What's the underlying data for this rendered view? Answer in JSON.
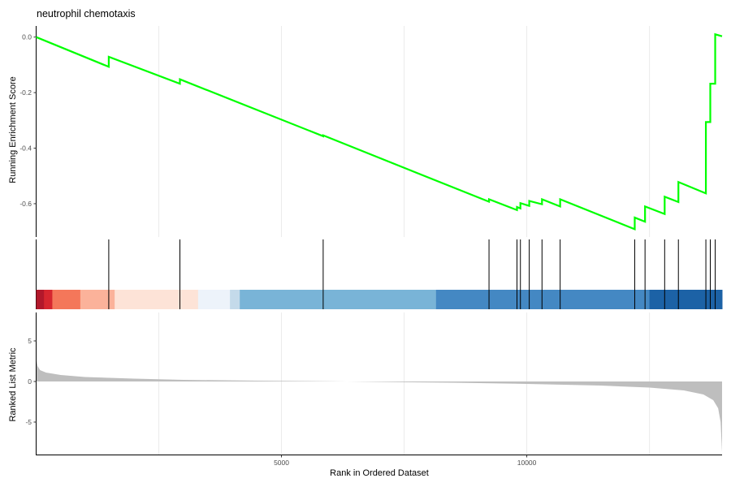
{
  "chart_data": {
    "type": "line",
    "title": "neutrophil chemotaxis",
    "xlabel": "Rank in Ordered Dataset",
    "xlim": [
      0,
      13980
    ],
    "x_ticks": [
      {
        "value": 5000,
        "label": "5000"
      },
      {
        "value": 10000,
        "label": "10000"
      }
    ],
    "running_score": {
      "ylabel": "Running Enrichment Score",
      "ylim": [
        -0.72,
        0.04
      ],
      "y_ticks": [
        {
          "value": 0.0,
          "label": "0.0"
        },
        {
          "value": -0.2,
          "label": "-0.2"
        },
        {
          "value": -0.4,
          "label": "-0.4"
        },
        {
          "value": -0.6,
          "label": "-0.6"
        }
      ],
      "color": "#00ff00",
      "points": [
        [
          0,
          0.0
        ],
        [
          1480,
          -0.107
        ],
        [
          1480,
          -0.071
        ],
        [
          2930,
          -0.168
        ],
        [
          2930,
          -0.152
        ],
        [
          5850,
          -0.357
        ],
        [
          5850,
          -0.354
        ],
        [
          9230,
          -0.593
        ],
        [
          9230,
          -0.584
        ],
        [
          9800,
          -0.623
        ],
        [
          9800,
          -0.612
        ],
        [
          9870,
          -0.617
        ],
        [
          9870,
          -0.598
        ],
        [
          10050,
          -0.608
        ],
        [
          10050,
          -0.59
        ],
        [
          10310,
          -0.602
        ],
        [
          10310,
          -0.584
        ],
        [
          10680,
          -0.61
        ],
        [
          10680,
          -0.584
        ],
        [
          12200,
          -0.692
        ],
        [
          12200,
          -0.65
        ],
        [
          12410,
          -0.665
        ],
        [
          12410,
          -0.61
        ],
        [
          12810,
          -0.637
        ],
        [
          12810,
          -0.575
        ],
        [
          13090,
          -0.594
        ],
        [
          13090,
          -0.522
        ],
        [
          13650,
          -0.563
        ],
        [
          13650,
          -0.306
        ],
        [
          13740,
          -0.306
        ],
        [
          13740,
          -0.168
        ],
        [
          13840,
          -0.168
        ],
        [
          13840,
          0.01
        ],
        [
          13980,
          0.003
        ]
      ]
    },
    "hit_positions": [
      1480,
      2930,
      5850,
      9230,
      9800,
      9870,
      10050,
      10310,
      10680,
      12200,
      12410,
      12810,
      13090,
      13650,
      13740,
      13840
    ],
    "color_bar": [
      {
        "start": 0,
        "end": 160,
        "color": "#b2182b"
      },
      {
        "start": 160,
        "end": 330,
        "color": "#d6262f"
      },
      {
        "start": 330,
        "end": 900,
        "color": "#f4775a"
      },
      {
        "start": 900,
        "end": 1600,
        "color": "#fbb29a"
      },
      {
        "start": 1600,
        "end": 3300,
        "color": "#fde3d7"
      },
      {
        "start": 3300,
        "end": 3950,
        "color": "#edf3fa"
      },
      {
        "start": 3950,
        "end": 4150,
        "color": "#c4daea"
      },
      {
        "start": 4150,
        "end": 8150,
        "color": "#79b4d7"
      },
      {
        "start": 8150,
        "end": 12500,
        "color": "#4488c3"
      },
      {
        "start": 12500,
        "end": 13980,
        "color": "#1c62a6"
      }
    ],
    "ranked_metric": {
      "ylabel": "Ranked List Metric",
      "ylim": [
        -9.0,
        8.5
      ],
      "y_ticks": [
        {
          "value": 5,
          "label": "5"
        },
        {
          "value": 0,
          "label": "0"
        },
        {
          "value": -5,
          "label": "-5"
        }
      ],
      "fill_color": "#bebebe",
      "points": [
        [
          0,
          2.8
        ],
        [
          30,
          1.9
        ],
        [
          80,
          1.4
        ],
        [
          200,
          1.1
        ],
        [
          500,
          0.8
        ],
        [
          1000,
          0.55
        ],
        [
          2000,
          0.35
        ],
        [
          3000,
          0.2
        ],
        [
          4500,
          0.1
        ],
        [
          6000,
          0.03
        ],
        [
          7000,
          -0.05
        ],
        [
          8500,
          -0.15
        ],
        [
          10000,
          -0.3
        ],
        [
          11500,
          -0.5
        ],
        [
          12500,
          -0.75
        ],
        [
          13200,
          -1.1
        ],
        [
          13600,
          -1.6
        ],
        [
          13800,
          -2.3
        ],
        [
          13900,
          -3.3
        ],
        [
          13950,
          -5.0
        ],
        [
          13980,
          -8.7
        ]
      ]
    }
  }
}
